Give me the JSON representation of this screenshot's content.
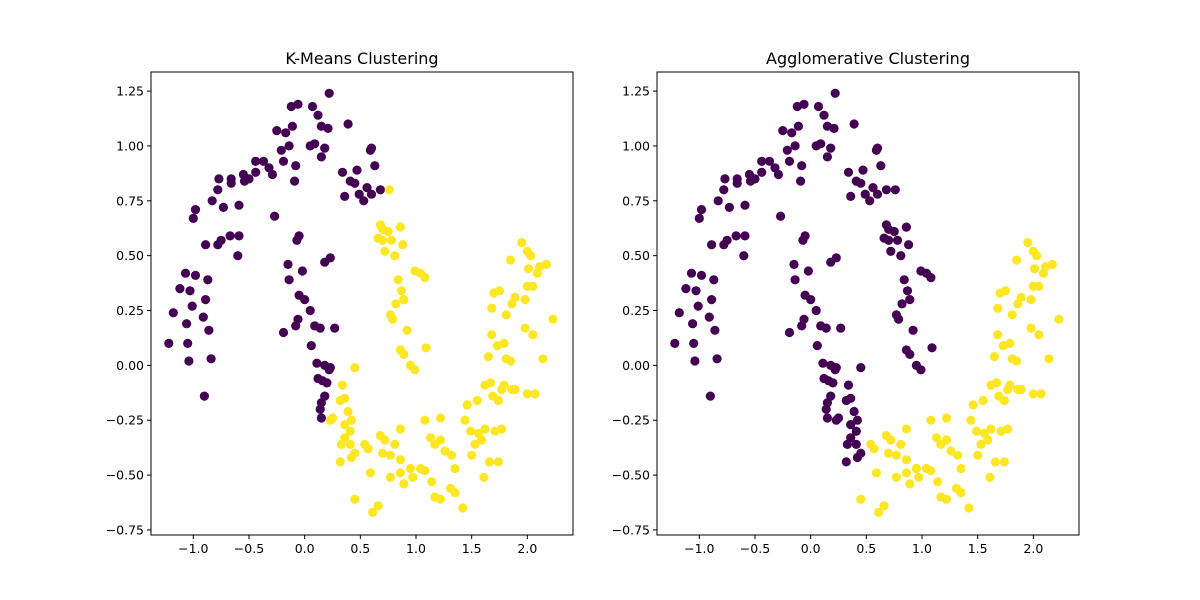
{
  "colors": {
    "cluster_0": "#440154",
    "cluster_1": "#fde725",
    "axes": "#000000",
    "background": "#ffffff"
  },
  "chart_data": [
    {
      "type": "scatter",
      "title": "K-Means Clustering",
      "xlim": [
        -1.38,
        2.41
      ],
      "ylim": [
        -0.773,
        1.337
      ],
      "grid": false,
      "x_ticks": [
        -1.0,
        -0.5,
        0.0,
        0.5,
        1.0,
        1.5,
        2.0
      ],
      "x_tick_labels": [
        "−1.0",
        "−0.5",
        "0.0",
        "0.5",
        "1.0",
        "1.5",
        "2.0"
      ],
      "y_ticks": [
        -0.75,
        -0.5,
        -0.25,
        0.0,
        0.25,
        0.5,
        0.75,
        1.0,
        1.25
      ],
      "y_tick_labels": [
        "−0.75",
        "−0.50",
        "−0.25",
        "0.00",
        "0.25",
        "0.50",
        "0.75",
        "1.00",
        "1.25"
      ],
      "label_key": "k"
    },
    {
      "type": "scatter",
      "title": "Agglomerative Clustering",
      "xlim": [
        -1.38,
        2.41
      ],
      "ylim": [
        -0.773,
        1.337
      ],
      "grid": false,
      "x_ticks": [
        -1.0,
        -0.5,
        0.0,
        0.5,
        1.0,
        1.5,
        2.0
      ],
      "x_tick_labels": [
        "−1.0",
        "−0.5",
        "0.0",
        "0.5",
        "1.0",
        "1.5",
        "2.0"
      ],
      "y_ticks": [
        -0.75,
        -0.5,
        -0.25,
        0.0,
        0.25,
        0.5,
        0.75,
        1.0,
        1.25
      ],
      "y_tick_labels": [
        "−0.75",
        "−0.50",
        "−0.25",
        "0.00",
        "0.25",
        "0.50",
        "0.75",
        "1.00",
        "1.25"
      ],
      "label_key": "a"
    }
  ],
  "points_note_columns": [
    "x",
    "y",
    "k",
    "a"
  ],
  "points": [
    [
      -1.22,
      0.1,
      0,
      0
    ],
    [
      -1.18,
      0.24,
      0,
      0
    ],
    [
      -1.12,
      0.35,
      0,
      0
    ],
    [
      -1.07,
      0.42,
      0,
      0
    ],
    [
      -1.05,
      0.1,
      0,
      0
    ],
    [
      -1.06,
      0.19,
      0,
      0
    ],
    [
      -1.03,
      0.34,
      0,
      0
    ],
    [
      -1.01,
      0.27,
      0,
      0
    ],
    [
      -0.98,
      0.41,
      0,
      0
    ],
    [
      -1.04,
      0.02,
      0,
      0
    ],
    [
      -0.9,
      -0.14,
      0,
      0
    ],
    [
      -0.91,
      0.22,
      0,
      0
    ],
    [
      -0.89,
      0.3,
      0,
      0
    ],
    [
      -0.87,
      0.39,
      0,
      0
    ],
    [
      -0.89,
      0.55,
      0,
      0
    ],
    [
      -0.86,
      0.16,
      0,
      0
    ],
    [
      -0.84,
      0.03,
      0,
      0
    ],
    [
      -1.0,
      0.67,
      0,
      0
    ],
    [
      -0.98,
      0.71,
      0,
      0
    ],
    [
      -0.83,
      0.75,
      0,
      0
    ],
    [
      -0.78,
      0.8,
      0,
      0
    ],
    [
      -0.77,
      0.85,
      0,
      0
    ],
    [
      -0.78,
      0.55,
      0,
      0
    ],
    [
      -0.75,
      0.57,
      0,
      0
    ],
    [
      -0.73,
      0.72,
      0,
      0
    ],
    [
      -0.66,
      0.83,
      0,
      0
    ],
    [
      -0.66,
      0.85,
      0,
      0
    ],
    [
      -0.67,
      0.59,
      0,
      0
    ],
    [
      -0.6,
      0.5,
      0,
      0
    ],
    [
      -0.59,
      0.59,
      0,
      0
    ],
    [
      -0.59,
      0.73,
      0,
      0
    ],
    [
      -0.54,
      0.84,
      0,
      0
    ],
    [
      -0.55,
      0.87,
      0,
      0
    ],
    [
      -0.5,
      0.85,
      0,
      0
    ],
    [
      -0.44,
      0.88,
      0,
      0
    ],
    [
      -0.44,
      0.93,
      0,
      0
    ],
    [
      -0.37,
      0.93,
      0,
      0
    ],
    [
      -0.32,
      0.9,
      0,
      0
    ],
    [
      -0.29,
      0.87,
      0,
      0
    ],
    [
      -0.27,
      0.68,
      0,
      0
    ],
    [
      -0.25,
      1.07,
      0,
      0
    ],
    [
      -0.21,
      0.98,
      0,
      0
    ],
    [
      -0.19,
      0.93,
      0,
      0
    ],
    [
      -0.17,
      1.06,
      0,
      0
    ],
    [
      -0.14,
      1.0,
      0,
      0
    ],
    [
      -0.12,
      1.18,
      0,
      0
    ],
    [
      -0.06,
      1.19,
      0,
      0
    ],
    [
      -0.11,
      1.09,
      0,
      0
    ],
    [
      -0.08,
      0.91,
      0,
      0
    ],
    [
      -0.09,
      0.84,
      0,
      0
    ],
    [
      0.07,
      1.18,
      0,
      0
    ],
    [
      0.12,
      1.14,
      0,
      0
    ],
    [
      0.15,
      1.09,
      0,
      0
    ],
    [
      0.21,
      1.08,
      0,
      0
    ],
    [
      0.22,
      1.24,
      0,
      0
    ],
    [
      0.05,
      1.0,
      0,
      0
    ],
    [
      0.09,
      1.01,
      0,
      0
    ],
    [
      0.18,
      0.99,
      0,
      0
    ],
    [
      0.15,
      0.95,
      0,
      0
    ],
    [
      0.39,
      1.1,
      0,
      0
    ],
    [
      0.34,
      0.88,
      0,
      0
    ],
    [
      0.36,
      0.77,
      0,
      0
    ],
    [
      0.41,
      0.84,
      0,
      0
    ],
    [
      0.45,
      0.83,
      0,
      0
    ],
    [
      0.47,
      0.89,
      0,
      0
    ],
    [
      0.49,
      0.78,
      0,
      0
    ],
    [
      0.53,
      0.75,
      0,
      0
    ],
    [
      0.59,
      0.98,
      0,
      0
    ],
    [
      0.6,
      0.99,
      0,
      0
    ],
    [
      0.63,
      0.91,
      0,
      0
    ],
    [
      0.56,
      0.81,
      0,
      0
    ],
    [
      0.6,
      0.78,
      0,
      0
    ],
    [
      0.68,
      0.8,
      0,
      0
    ],
    [
      -0.07,
      0.57,
      0,
      0
    ],
    [
      -0.05,
      0.59,
      0,
      0
    ],
    [
      -0.15,
      0.46,
      0,
      0
    ],
    [
      -0.14,
      0.39,
      0,
      0
    ],
    [
      -0.02,
      0.43,
      0,
      0
    ],
    [
      0.18,
      0.47,
      0,
      0
    ],
    [
      0.23,
      0.49,
      0,
      0
    ],
    [
      -0.05,
      0.32,
      0,
      0
    ],
    [
      0.0,
      0.3,
      0,
      0
    ],
    [
      0.05,
      0.25,
      0,
      0
    ],
    [
      -0.06,
      0.21,
      0,
      0
    ],
    [
      -0.08,
      0.18,
      0,
      0
    ],
    [
      -0.19,
      0.15,
      0,
      0
    ],
    [
      0.09,
      0.18,
      0,
      0
    ],
    [
      0.14,
      0.17,
      0,
      0
    ],
    [
      0.27,
      0.17,
      0,
      0
    ],
    [
      0.06,
      0.09,
      0,
      0
    ],
    [
      0.11,
      0.01,
      0,
      0
    ],
    [
      0.18,
      0.0,
      0,
      0
    ],
    [
      0.23,
      -0.01,
      0,
      0
    ],
    [
      0.12,
      -0.06,
      0,
      0
    ],
    [
      0.16,
      -0.07,
      0,
      0
    ],
    [
      0.2,
      -0.08,
      0,
      0
    ],
    [
      0.14,
      -0.2,
      0,
      0
    ],
    [
      0.15,
      -0.17,
      0,
      0
    ],
    [
      0.18,
      -0.14,
      0,
      0
    ],
    [
      0.15,
      -0.24,
      0,
      0
    ],
    [
      0.22,
      -0.02,
      0,
      0
    ],
    [
      0.76,
      0.8,
      1,
      0
    ],
    [
      0.68,
      0.64,
      1,
      0
    ],
    [
      0.7,
      0.62,
      1,
      0
    ],
    [
      0.75,
      0.61,
      1,
      0
    ],
    [
      0.66,
      0.58,
      1,
      0
    ],
    [
      0.7,
      0.57,
      1,
      0
    ],
    [
      0.78,
      0.57,
      1,
      0
    ],
    [
      0.86,
      0.63,
      1,
      0
    ],
    [
      0.88,
      0.55,
      1,
      0
    ],
    [
      0.72,
      0.52,
      1,
      0
    ],
    [
      0.81,
      0.5,
      1,
      0
    ],
    [
      0.99,
      0.43,
      1,
      0
    ],
    [
      1.04,
      0.42,
      1,
      0
    ],
    [
      1.08,
      0.4,
      1,
      0
    ],
    [
      0.84,
      0.39,
      1,
      0
    ],
    [
      0.87,
      0.34,
      1,
      0
    ],
    [
      0.89,
      0.3,
      1,
      0
    ],
    [
      0.82,
      0.28,
      1,
      0
    ],
    [
      0.77,
      0.23,
      1,
      0
    ],
    [
      0.79,
      0.21,
      1,
      0
    ],
    [
      0.92,
      0.16,
      1,
      0
    ],
    [
      1.09,
      0.08,
      1,
      0
    ],
    [
      0.86,
      0.07,
      1,
      0
    ],
    [
      0.89,
      0.05,
      1,
      0
    ],
    [
      0.95,
      0.0,
      1,
      0
    ],
    [
      0.99,
      -0.02,
      1,
      0
    ],
    [
      0.45,
      -0.01,
      1,
      0
    ],
    [
      0.34,
      -0.09,
      1,
      0
    ],
    [
      0.32,
      -0.16,
      1,
      0
    ],
    [
      0.36,
      -0.15,
      1,
      0
    ],
    [
      0.25,
      -0.24,
      1,
      0
    ],
    [
      0.23,
      -0.25,
      1,
      0
    ],
    [
      0.39,
      -0.21,
      1,
      0
    ],
    [
      0.36,
      -0.27,
      1,
      0
    ],
    [
      0.42,
      -0.25,
      1,
      0
    ],
    [
      0.41,
      -0.3,
      1,
      0
    ],
    [
      0.36,
      -0.33,
      1,
      0
    ],
    [
      0.41,
      -0.36,
      1,
      0
    ],
    [
      0.33,
      -0.36,
      1,
      0
    ],
    [
      0.32,
      -0.44,
      1,
      0
    ],
    [
      0.45,
      -0.4,
      1,
      0
    ],
    [
      0.42,
      -0.42,
      1,
      0
    ],
    [
      0.54,
      -0.36,
      1,
      1
    ],
    [
      0.57,
      -0.38,
      1,
      1
    ],
    [
      0.59,
      -0.49,
      1,
      1
    ],
    [
      0.45,
      -0.61,
      1,
      1
    ],
    [
      0.66,
      -0.64,
      1,
      1
    ],
    [
      0.61,
      -0.67,
      1,
      1
    ],
    [
      0.68,
      -0.32,
      1,
      1
    ],
    [
      0.72,
      -0.34,
      1,
      1
    ],
    [
      0.7,
      -0.4,
      1,
      1
    ],
    [
      0.77,
      -0.41,
      1,
      1
    ],
    [
      0.81,
      -0.36,
      1,
      1
    ],
    [
      0.86,
      -0.29,
      1,
      1
    ],
    [
      0.86,
      -0.43,
      1,
      1
    ],
    [
      0.95,
      -0.47,
      1,
      1
    ],
    [
      0.97,
      -0.51,
      1,
      1
    ],
    [
      0.86,
      -0.49,
      1,
      1
    ],
    [
      0.89,
      -0.54,
      1,
      1
    ],
    [
      0.77,
      -0.51,
      1,
      1
    ],
    [
      1.04,
      -0.47,
      1,
      1
    ],
    [
      1.08,
      -0.48,
      1,
      1
    ],
    [
      1.14,
      -0.53,
      1,
      1
    ],
    [
      1.17,
      -0.6,
      1,
      1
    ],
    [
      1.22,
      -0.61,
      1,
      1
    ],
    [
      1.08,
      -0.25,
      1,
      1
    ],
    [
      1.13,
      -0.33,
      1,
      1
    ],
    [
      1.17,
      -0.36,
      1,
      1
    ],
    [
      1.22,
      -0.24,
      1,
      1
    ],
    [
      1.22,
      -0.34,
      1,
      1
    ],
    [
      1.26,
      -0.39,
      1,
      1
    ],
    [
      1.32,
      -0.41,
      1,
      1
    ],
    [
      1.35,
      -0.47,
      1,
      1
    ],
    [
      1.31,
      -0.56,
      1,
      1
    ],
    [
      1.35,
      -0.58,
      1,
      1
    ],
    [
      1.42,
      -0.65,
      1,
      1
    ],
    [
      1.44,
      -0.25,
      1,
      1
    ],
    [
      1.46,
      -0.18,
      1,
      1
    ],
    [
      1.49,
      -0.3,
      1,
      1
    ],
    [
      1.5,
      -0.41,
      1,
      1
    ],
    [
      1.53,
      -0.36,
      1,
      1
    ],
    [
      1.56,
      -0.31,
      1,
      1
    ],
    [
      1.59,
      -0.34,
      1,
      1
    ],
    [
      1.62,
      -0.29,
      1,
      1
    ],
    [
      1.61,
      -0.51,
      1,
      1
    ],
    [
      1.66,
      -0.44,
      1,
      1
    ],
    [
      1.71,
      -0.3,
      1,
      1
    ],
    [
      1.74,
      -0.44,
      1,
      1
    ],
    [
      1.77,
      -0.29,
      1,
      1
    ],
    [
      1.55,
      -0.16,
      1,
      1
    ],
    [
      1.62,
      -0.09,
      1,
      1
    ],
    [
      1.67,
      -0.08,
      1,
      1
    ],
    [
      1.69,
      -0.14,
      1,
      1
    ],
    [
      1.74,
      -0.16,
      1,
      1
    ],
    [
      1.77,
      -0.11,
      1,
      1
    ],
    [
      1.79,
      -0.09,
      1,
      1
    ],
    [
      1.86,
      -0.11,
      1,
      1
    ],
    [
      1.89,
      -0.11,
      1,
      1
    ],
    [
      2.0,
      -0.13,
      1,
      1
    ],
    [
      2.07,
      -0.13,
      1,
      1
    ],
    [
      1.65,
      0.04,
      1,
      1
    ],
    [
      1.73,
      0.09,
      1,
      1
    ],
    [
      1.85,
      0.02,
      1,
      1
    ],
    [
      1.68,
      0.14,
      1,
      1
    ],
    [
      1.79,
      0.1,
      1,
      1
    ],
    [
      1.81,
      0.03,
      1,
      1
    ],
    [
      1.68,
      0.26,
      1,
      1
    ],
    [
      1.7,
      0.33,
      1,
      1
    ],
    [
      1.75,
      0.34,
      1,
      1
    ],
    [
      1.81,
      0.23,
      1,
      1
    ],
    [
      1.86,
      0.28,
      1,
      1
    ],
    [
      1.89,
      0.31,
      1,
      1
    ],
    [
      1.98,
      0.3,
      1,
      1
    ],
    [
      2.0,
      0.36,
      1,
      1
    ],
    [
      2.05,
      0.36,
      1,
      1
    ],
    [
      2.09,
      0.42,
      1,
      1
    ],
    [
      2.01,
      0.44,
      1,
      1
    ],
    [
      2.03,
      0.5,
      1,
      1
    ],
    [
      1.95,
      0.56,
      1,
      1
    ],
    [
      2.0,
      0.52,
      1,
      1
    ],
    [
      1.85,
      0.48,
      1,
      1
    ],
    [
      2.11,
      0.45,
      1,
      1
    ],
    [
      2.17,
      0.46,
      1,
      1
    ],
    [
      1.98,
      0.17,
      1,
      1
    ],
    [
      2.05,
      0.14,
      1,
      1
    ],
    [
      2.23,
      0.21,
      1,
      1
    ],
    [
      2.14,
      0.03,
      1,
      1
    ]
  ]
}
